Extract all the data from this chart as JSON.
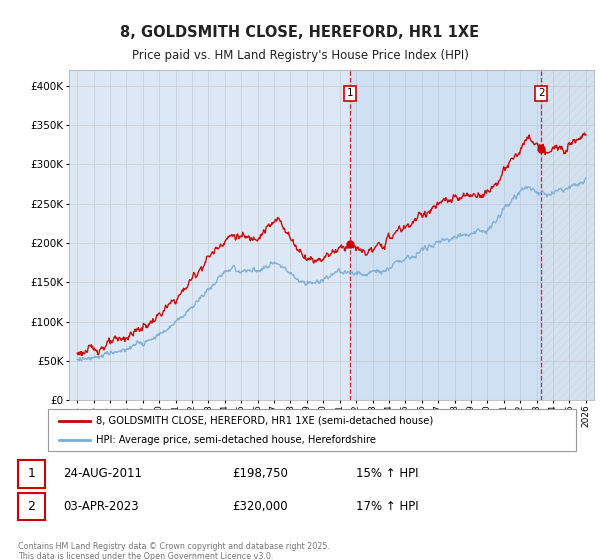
{
  "title": "8, GOLDSMITH CLOSE, HEREFORD, HR1 1XE",
  "subtitle": "Price paid vs. HM Land Registry's House Price Index (HPI)",
  "ylim": [
    0,
    420000
  ],
  "yticks": [
    0,
    50000,
    100000,
    150000,
    200000,
    250000,
    300000,
    350000,
    400000
  ],
  "xlim_start": 1994.5,
  "xlim_end": 2026.5,
  "legend_line1": "8, GOLDSMITH CLOSE, HEREFORD, HR1 1XE (semi-detached house)",
  "legend_line2": "HPI: Average price, semi-detached house, Herefordshire",
  "sale1_label": "1",
  "sale1_date": "24-AUG-2011",
  "sale1_price": "£198,750",
  "sale1_hpi": "15% ↑ HPI",
  "sale1_x": 2011.65,
  "sale1_y": 198750,
  "sale2_label": "2",
  "sale2_date": "03-APR-2023",
  "sale2_price": "£320,000",
  "sale2_hpi": "17% ↑ HPI",
  "sale2_x": 2023.28,
  "sale2_y": 320000,
  "red_color": "#cc0000",
  "blue_color": "#7aadd4",
  "vline_color": "#cc0000",
  "grid_color": "#cccccc",
  "plot_bg": "#dce8f5",
  "highlight_bg": "#dce8f5",
  "footer": "Contains HM Land Registry data © Crown copyright and database right 2025.\nThis data is licensed under the Open Government Licence v3.0.",
  "noise_seed": 123,
  "noise_scale_price": 5000,
  "noise_scale_hpi": 3500
}
